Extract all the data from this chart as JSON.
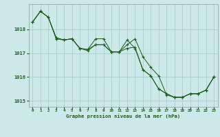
{
  "title": "Graphe pression niveau de la mer (hPa)",
  "background_color": "#cce8e8",
  "grid_color": "#aacccc",
  "line_color": "#1a5c1a",
  "xlim": [
    -0.5,
    23.5
  ],
  "ylim": [
    1014.75,
    1019.05
  ],
  "yticks": [
    1015,
    1016,
    1017,
    1018
  ],
  "xticks": [
    0,
    1,
    2,
    3,
    4,
    5,
    6,
    7,
    8,
    9,
    10,
    11,
    12,
    13,
    14,
    15,
    16,
    17,
    18,
    19,
    20,
    21,
    22,
    23
  ],
  "series": [
    [
      1018.3,
      1018.75,
      1018.5,
      1017.6,
      1017.55,
      1017.6,
      1017.2,
      1017.15,
      1017.6,
      1017.6,
      1017.05,
      1017.05,
      1017.55,
      1017.2,
      1016.3,
      1016.05,
      1015.5,
      1015.3,
      1015.15,
      1015.15,
      1015.3,
      1015.3,
      1015.45,
      1016.0
    ],
    [
      1018.3,
      1018.75,
      1018.5,
      1017.6,
      1017.55,
      1017.6,
      1017.2,
      1017.15,
      1017.35,
      1017.35,
      1017.05,
      1017.05,
      1017.2,
      1017.25,
      1016.3,
      1016.05,
      1015.5,
      1015.3,
      1015.15,
      1015.15,
      1015.3,
      1015.3,
      1015.45,
      1016.0
    ],
    [
      1018.3,
      1018.75,
      1018.5,
      1017.65,
      1017.55,
      1017.6,
      1017.2,
      1017.1,
      1017.35,
      1017.35,
      1017.05,
      1017.05,
      1017.35,
      1017.6,
      1016.85,
      1016.4,
      1016.05,
      1015.25,
      1015.15,
      1015.15,
      1015.3,
      1015.3,
      1015.45,
      1016.0
    ]
  ]
}
